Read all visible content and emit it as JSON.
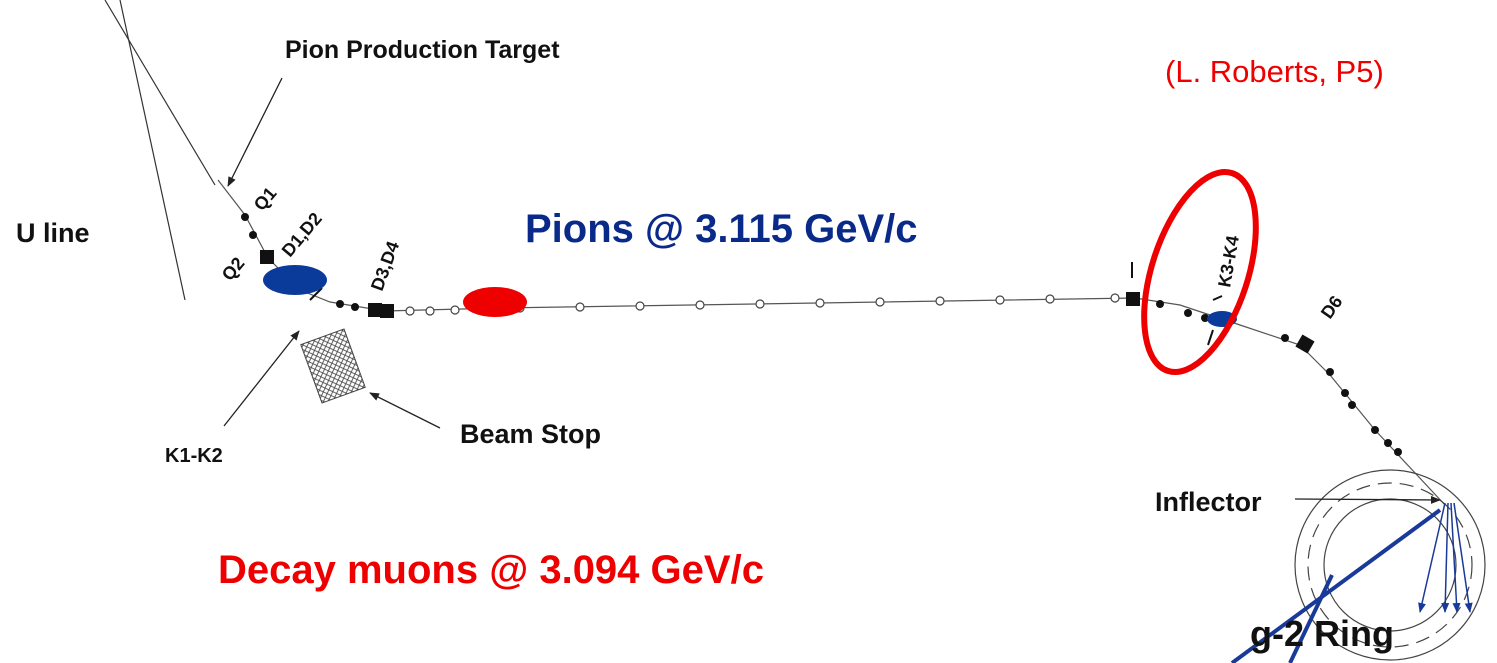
{
  "labels": {
    "pion_target": "Pion Production Target",
    "credit": "(L. Roberts, P5)",
    "u_line": "U line",
    "q1": "Q1",
    "q2": "Q2",
    "d1d2": "D1,D2",
    "d3d4": "D3,D4",
    "pions": "Pions @ 3.115 GeV/c",
    "k3k4": "K3-K4",
    "d6": "D6",
    "k1k2": "K1-K2",
    "beam_stop": "Beam Stop",
    "inflector": "Inflector",
    "muons": "Decay muons @ 3.094 GeV/c",
    "ring": "g-2 Ring"
  }
}
